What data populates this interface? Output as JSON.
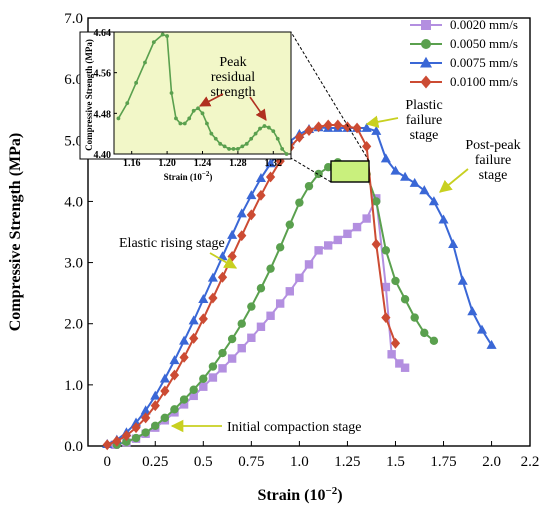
{
  "chart_data": [
    {
      "type": "line",
      "xlabel": "Strain (10",
      "xlabel_sup": "−2",
      "xlabel_close": ")",
      "ylabel": "Compressive Strength (MPa)",
      "xlim": [
        -0.1,
        2.2
      ],
      "ylim": [
        0,
        7.0
      ],
      "xticks": [
        0,
        0.25,
        0.5,
        0.75,
        1.0,
        1.25,
        1.5,
        1.75,
        2.0,
        2.2
      ],
      "xtick_labels": [
        "0",
        "0.25",
        "0.5",
        "0.75",
        "1.0",
        "1.25",
        "1.5",
        "1.75",
        "2.0",
        "2.2"
      ],
      "yticks": [
        0,
        1,
        2,
        3,
        4,
        5,
        6,
        7
      ],
      "ytick_labels": [
        "0.0",
        "1.0",
        "2.0",
        "3.0",
        "4.0",
        "5.0",
        "6.0",
        "7.0"
      ],
      "grid": false,
      "legend_position": "top-right",
      "series": [
        {
          "name": "0.0020 mm/s",
          "color": "#b38fe0",
          "marker": "square",
          "x": [
            0.04,
            0.1,
            0.15,
            0.2,
            0.25,
            0.3,
            0.35,
            0.4,
            0.45,
            0.5,
            0.55,
            0.6,
            0.65,
            0.7,
            0.75,
            0.8,
            0.85,
            0.9,
            0.95,
            1.0,
            1.05,
            1.1,
            1.15,
            1.2,
            1.25,
            1.3,
            1.35,
            1.4,
            1.45,
            1.48,
            1.52,
            1.55
          ],
          "y": [
            0.02,
            0.06,
            0.12,
            0.2,
            0.3,
            0.42,
            0.55,
            0.68,
            0.82,
            0.97,
            1.12,
            1.27,
            1.43,
            1.6,
            1.77,
            1.95,
            2.13,
            2.33,
            2.53,
            2.75,
            2.97,
            3.2,
            3.28,
            3.37,
            3.47,
            3.58,
            3.72,
            4.05,
            2.6,
            1.5,
            1.35,
            1.28
          ]
        },
        {
          "name": "0.0050 mm/s",
          "color": "#5aa04e",
          "marker": "circle",
          "x": [
            0.05,
            0.1,
            0.15,
            0.2,
            0.25,
            0.3,
            0.35,
            0.4,
            0.45,
            0.5,
            0.55,
            0.6,
            0.65,
            0.7,
            0.75,
            0.8,
            0.85,
            0.9,
            0.95,
            1.0,
            1.05,
            1.1,
            1.15,
            1.2,
            1.25,
            1.3,
            1.35,
            1.4,
            1.45,
            1.5,
            1.55,
            1.6,
            1.65,
            1.7
          ],
          "y": [
            0.02,
            0.07,
            0.13,
            0.22,
            0.33,
            0.46,
            0.6,
            0.76,
            0.92,
            1.1,
            1.3,
            1.52,
            1.75,
            2.0,
            2.28,
            2.58,
            2.9,
            3.25,
            3.62,
            3.98,
            4.25,
            4.45,
            4.56,
            4.64,
            4.48,
            4.45,
            4.44,
            4.0,
            3.2,
            2.7,
            2.4,
            2.1,
            1.85,
            1.72
          ]
        },
        {
          "name": "0.0075 mm/s",
          "color": "#3a67d6",
          "marker": "triangle",
          "x": [
            0.0,
            0.05,
            0.1,
            0.15,
            0.2,
            0.25,
            0.3,
            0.35,
            0.4,
            0.45,
            0.5,
            0.55,
            0.6,
            0.65,
            0.7,
            0.75,
            0.8,
            0.85,
            0.9,
            0.95,
            1.0,
            1.05,
            1.1,
            1.15,
            1.2,
            1.25,
            1.3,
            1.35,
            1.4,
            1.45,
            1.5,
            1.55,
            1.6,
            1.65,
            1.7,
            1.75,
            1.8,
            1.85,
            1.9,
            1.95,
            2.0
          ],
          "y": [
            0.03,
            0.1,
            0.22,
            0.38,
            0.58,
            0.82,
            1.1,
            1.4,
            1.72,
            2.05,
            2.4,
            2.75,
            3.1,
            3.45,
            3.8,
            4.1,
            4.38,
            4.62,
            4.82,
            4.98,
            5.1,
            5.18,
            5.21,
            5.2,
            5.2,
            5.2,
            5.2,
            5.2,
            5.15,
            4.7,
            4.5,
            4.4,
            4.3,
            4.18,
            4.0,
            3.7,
            3.3,
            2.7,
            2.2,
            1.9,
            1.65
          ]
        },
        {
          "name": "0.0100 mm/s",
          "color": "#cc4b33",
          "marker": "diamond",
          "x": [
            0.0,
            0.05,
            0.1,
            0.15,
            0.2,
            0.25,
            0.3,
            0.35,
            0.4,
            0.45,
            0.5,
            0.55,
            0.6,
            0.65,
            0.7,
            0.75,
            0.8,
            0.85,
            0.9,
            0.95,
            1.0,
            1.05,
            1.1,
            1.15,
            1.2,
            1.25,
            1.3,
            1.35,
            1.4,
            1.45,
            1.5
          ],
          "y": [
            0.02,
            0.08,
            0.17,
            0.3,
            0.46,
            0.66,
            0.9,
            1.16,
            1.45,
            1.76,
            2.08,
            2.42,
            2.76,
            3.1,
            3.44,
            3.78,
            4.1,
            4.4,
            4.66,
            4.88,
            5.05,
            5.16,
            5.22,
            5.25,
            5.25,
            5.22,
            5.2,
            4.9,
            3.3,
            2.1,
            1.68
          ]
        }
      ],
      "annotations": [
        {
          "text": "Elastic rising stage"
        },
        {
          "text": "Initial compaction stage"
        },
        {
          "lines": [
            "Plastic",
            "failure",
            "stage"
          ]
        },
        {
          "lines": [
            "Post-peak",
            "failure",
            "stage"
          ]
        }
      ]
    },
    {
      "type": "line",
      "ylabel": "Compressive Strength (MPa)",
      "xlabel": "Strain (10",
      "xlabel_sup": "−2",
      "xlabel_close": ")",
      "xlim": [
        1.14,
        1.34
      ],
      "ylim": [
        4.4,
        4.64
      ],
      "xticks": [
        1.16,
        1.2,
        1.24,
        1.28,
        1.32
      ],
      "xtick_labels": [
        "1.16",
        "1.20",
        "1.24",
        "1.28",
        "1.32"
      ],
      "yticks": [
        4.4,
        4.48,
        4.56,
        4.64
      ],
      "ytick_labels": [
        "4.40",
        "4.48",
        "4.56",
        "4.64"
      ],
      "background": "#f2f7c8",
      "series": [
        {
          "name": "0.0050 mm/s",
          "color": "#5aa04e",
          "x": [
            1.145,
            1.155,
            1.165,
            1.175,
            1.185,
            1.195,
            1.2,
            1.205,
            1.21,
            1.215,
            1.22,
            1.225,
            1.23,
            1.235,
            1.24,
            1.245,
            1.25,
            1.255,
            1.26,
            1.265,
            1.27,
            1.275,
            1.28,
            1.285,
            1.29,
            1.295,
            1.3,
            1.305,
            1.31,
            1.315,
            1.32,
            1.325,
            1.33,
            1.335
          ],
          "y": [
            4.47,
            4.5,
            4.54,
            4.58,
            4.62,
            4.635,
            4.632,
            4.52,
            4.47,
            4.46,
            4.46,
            4.47,
            4.485,
            4.49,
            4.48,
            4.46,
            4.44,
            4.43,
            4.42,
            4.415,
            4.41,
            4.41,
            4.41,
            4.415,
            4.42,
            4.43,
            4.44,
            4.45,
            4.455,
            4.452,
            4.445,
            4.43,
            4.41,
            4.4
          ]
        }
      ],
      "annotation": {
        "lines": [
          "Peak",
          "residual",
          "strength"
        ]
      }
    }
  ]
}
